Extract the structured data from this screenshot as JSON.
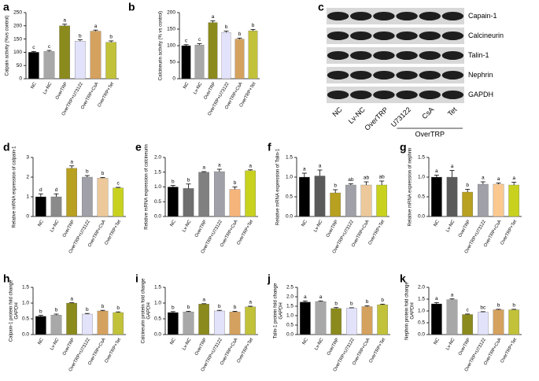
{
  "chart_data": [
    {
      "panel": "a",
      "type": "bar",
      "ylabel": "Calpain activity (%vs control)",
      "categories": [
        "NC",
        "Lv-NC",
        "OverTRP",
        "OverTRP+U73122",
        "OverTRP+CsA",
        "OverTRP+Tet"
      ],
      "values": [
        100,
        103,
        200,
        142,
        180,
        138
      ],
      "errors": [
        3,
        4,
        6,
        5,
        4,
        5
      ],
      "letters": [
        "c",
        "c",
        "a",
        "b",
        "a",
        "b"
      ],
      "colors": [
        "#000000",
        "#a8a8a8",
        "#8b8a1c",
        "#e2e2fa",
        "#d4a15e",
        "#c2c23a"
      ],
      "ylim": [
        0,
        250
      ],
      "yticks": [
        0,
        50,
        100,
        150,
        200,
        250
      ]
    },
    {
      "panel": "b",
      "type": "bar",
      "ylabel": "Calcineurin activity (% vs control)",
      "categories": [
        "NC",
        "Lv-NC",
        "OverTRP",
        "OverTRP+U73122",
        "OverTRP+CsA",
        "OverTRP+Tet"
      ],
      "values": [
        100,
        102,
        170,
        140,
        120,
        145
      ],
      "errors": [
        3,
        4,
        5,
        4,
        3,
        4
      ],
      "letters": [
        "c",
        "c",
        "a",
        "b",
        "b",
        "b"
      ],
      "colors": [
        "#000000",
        "#a8a8a8",
        "#8b8a1c",
        "#e2e2fa",
        "#d4a15e",
        "#c2c23a"
      ],
      "ylim": [
        0,
        200
      ],
      "yticks": [
        0,
        50,
        100,
        150,
        200
      ]
    },
    {
      "panel": "d",
      "type": "bar",
      "ylabel": "Relative mRNA expression of calpain-1",
      "categories": [
        "NC",
        "Lv-NC",
        "OverTRP",
        "OverTRP+U73122",
        "OverTRP+CsA",
        "OverTRP+Tet"
      ],
      "values": [
        1.0,
        1.0,
        2.45,
        2.0,
        1.95,
        1.45
      ],
      "errors": [
        0.15,
        0.15,
        0.12,
        0.08,
        0.03,
        0.03
      ],
      "letters": [
        "d",
        "d",
        "a",
        "b",
        "b",
        "c"
      ],
      "colors": [
        "#000000",
        "#8a8a8a",
        "#b8a020",
        "#a0a0a8",
        "#ecc89a",
        "#c8d21e"
      ],
      "ylim": [
        0,
        3
      ],
      "yticks": [
        0,
        1,
        2,
        3
      ]
    },
    {
      "panel": "e",
      "type": "bar",
      "ylabel": "Relative mRNA expression of calcineurin",
      "categories": [
        "NC",
        "Lv-NC",
        "OverTRP",
        "OverTRP+U73122",
        "OverTRP+CsA",
        "OverTRP+Tet"
      ],
      "values": [
        1.0,
        0.95,
        1.5,
        1.52,
        0.92,
        1.55
      ],
      "errors": [
        0.05,
        0.15,
        0.02,
        0.08,
        0.08,
        0.03
      ],
      "letters": [
        "b",
        "b",
        "a",
        "a",
        "b",
        "a"
      ],
      "colors": [
        "#000000",
        "#6e6e6e",
        "#808080",
        "#a0a0a8",
        "#f5b47a",
        "#c8d21e"
      ],
      "ylim": [
        0,
        2.0
      ],
      "yticks": [
        {
          "value": 0,
          "label": "0.0"
        },
        0.5,
        {
          "value": 1,
          "label": "1.0"
        },
        1.5,
        {
          "value": 2,
          "label": "2.0"
        }
      ]
    },
    {
      "panel": "f",
      "type": "bar",
      "ylabel": "Relative mRNA expression of Talin-1",
      "categories": [
        "NC",
        "Lv-NC",
        "OverTRP",
        "OverTRP+U73122",
        "OverTRP+CsA",
        "OverTRP+Tet"
      ],
      "values": [
        1.0,
        1.03,
        0.6,
        0.8,
        0.8,
        0.8
      ],
      "errors": [
        0.1,
        0.15,
        0.08,
        0.03,
        0.08,
        0.1
      ],
      "letters": [
        "a",
        "a",
        "b",
        "ab",
        "ab",
        "ab"
      ],
      "colors": [
        "#000000",
        "#5a5a5a",
        "#b8a020",
        "#a0a0a8",
        "#ecc89a",
        "#c8d21e"
      ],
      "ylim": [
        0,
        1.5
      ],
      "yticks": [
        {
          "value": 0,
          "label": "0.0"
        },
        0.5,
        {
          "value": 1,
          "label": "1.0"
        },
        1.5
      ]
    },
    {
      "panel": "g",
      "type": "bar",
      "ylabel": "Relative mRNA expression of nephrin",
      "categories": [
        "NC",
        "Lv-NC",
        "OverTRP",
        "OverTRP+U73122",
        "OverTRP+CsA",
        "OverTRP+Tet"
      ],
      "values": [
        1.0,
        1.0,
        0.62,
        0.82,
        0.82,
        0.8
      ],
      "errors": [
        0.05,
        0.17,
        0.07,
        0.06,
        0.03,
        0.07
      ],
      "letters": [
        "a",
        "a",
        "b",
        "a",
        "a",
        "a"
      ],
      "colors": [
        "#000000",
        "#5a5a5a",
        "#b8a020",
        "#a0a0a8",
        "#fbc890",
        "#c8d21e"
      ],
      "ylim": [
        0,
        1.5
      ],
      "yticks": [
        {
          "value": 0,
          "label": "0.0"
        },
        0.5,
        {
          "value": 1,
          "label": "1.0"
        },
        1.5
      ]
    },
    {
      "panel": "h",
      "type": "bar",
      "ylabel": [
        "Calpain-1 protein fold change",
        "GAPDH"
      ],
      "categories": [
        "NC",
        "Lv-NC",
        "OverTRP",
        "OverTRP+U73122",
        "OverTRP+CsA",
        "OverTRP+Tet"
      ],
      "values": [
        0.58,
        0.62,
        1.0,
        0.65,
        0.75,
        0.7
      ],
      "errors": [
        0.03,
        0.03,
        0.01,
        0.02,
        0.02,
        0.02
      ],
      "letters": [
        "b",
        "b",
        "a",
        "b",
        "b",
        "b"
      ],
      "colors": [
        "#000000",
        "#a8a8a8",
        "#8b8a1c",
        "#e2e2fa",
        "#d4a15e",
        "#c2c23a"
      ],
      "ylim": [
        0,
        1.5
      ],
      "yticks": [
        {
          "value": 0,
          "label": "0.0"
        },
        0.5,
        {
          "value": 1,
          "label": "1.0"
        },
        1.5
      ]
    },
    {
      "panel": "i",
      "type": "bar",
      "ylabel": [
        "Calcineurin protein fold change",
        "GAPDH"
      ],
      "categories": [
        "NC",
        "Lv-NC",
        "OverTRP",
        "OverTRP+U73122",
        "OverTRP+CsA",
        "OverTRP+Tet"
      ],
      "values": [
        0.7,
        0.72,
        0.97,
        0.75,
        0.72,
        0.88
      ],
      "errors": [
        0.03,
        0.02,
        0.01,
        0.02,
        0.02,
        0.02
      ],
      "letters": [
        "b",
        "b",
        "a",
        "b",
        "b",
        "a"
      ],
      "colors": [
        "#000000",
        "#a8a8a8",
        "#8b8a1c",
        "#e2e2fa",
        "#d4a15e",
        "#c2c23a"
      ],
      "ylim": [
        0,
        1.5
      ],
      "yticks": [
        {
          "value": 0,
          "label": "0.0"
        },
        0.5,
        {
          "value": 1,
          "label": "1.0"
        },
        1.5
      ]
    },
    {
      "panel": "j",
      "type": "bar",
      "ylabel": [
        "Talin-1 protein fold change",
        "GAPDH"
      ],
      "categories": [
        "NC",
        "Lv-NC",
        "OverTRP",
        "OverTRP+U73122",
        "OverTRP+CsA",
        "OverTRP+Tet"
      ],
      "values": [
        1.72,
        1.75,
        1.38,
        1.4,
        1.48,
        1.58
      ],
      "errors": [
        0.06,
        0.03,
        0.05,
        0.02,
        0.04,
        0.03
      ],
      "letters": [
        "a",
        "a",
        "b",
        "b",
        "b",
        "b"
      ],
      "colors": [
        "#000000",
        "#a8a8a8",
        "#8b8a1c",
        "#e2e2fa",
        "#d4a15e",
        "#c2c23a"
      ],
      "ylim": [
        0,
        2.5
      ],
      "yticks": [
        {
          "value": 0,
          "label": "0.0"
        },
        0.5,
        {
          "value": 1,
          "label": "1.0"
        },
        1.5,
        {
          "value": 2,
          "label": "2.0"
        },
        2.5
      ]
    },
    {
      "panel": "k",
      "type": "bar",
      "ylabel": [
        "Nephrin protein fold change",
        "GAPDH"
      ],
      "categories": [
        "NC",
        "Lv-NC",
        "OverTRP",
        "OverTRP+U73122",
        "OverTRP+CsA",
        "OverTRP+Tet"
      ],
      "values": [
        1.3,
        1.48,
        0.85,
        0.95,
        1.05,
        1.05
      ],
      "errors": [
        0.05,
        0.03,
        0.02,
        0.02,
        0.02,
        0.02
      ],
      "letters": [
        "a",
        "a",
        "c",
        "bc",
        "b",
        "b"
      ],
      "colors": [
        "#000000",
        "#a8a8a8",
        "#8b8a1c",
        "#e2e2fa",
        "#d4a15e",
        "#c2c23a"
      ],
      "ylim": [
        0,
        2.0
      ],
      "yticks": [
        {
          "value": 0,
          "label": "0.0"
        },
        0.5,
        {
          "value": 1,
          "label": "1.0"
        },
        1.5,
        {
          "value": 2,
          "label": "2.0"
        }
      ]
    }
  ],
  "blot": {
    "panel": "c",
    "proteins": [
      "Capain-1",
      "Calcineurin",
      "Talin-1",
      "Nephrin",
      "GAPDH"
    ],
    "lanes": [
      "NC",
      "Lv-NC",
      "OverTRP",
      "U73122",
      "CsA",
      "Tet"
    ],
    "group": "OverTRP"
  }
}
